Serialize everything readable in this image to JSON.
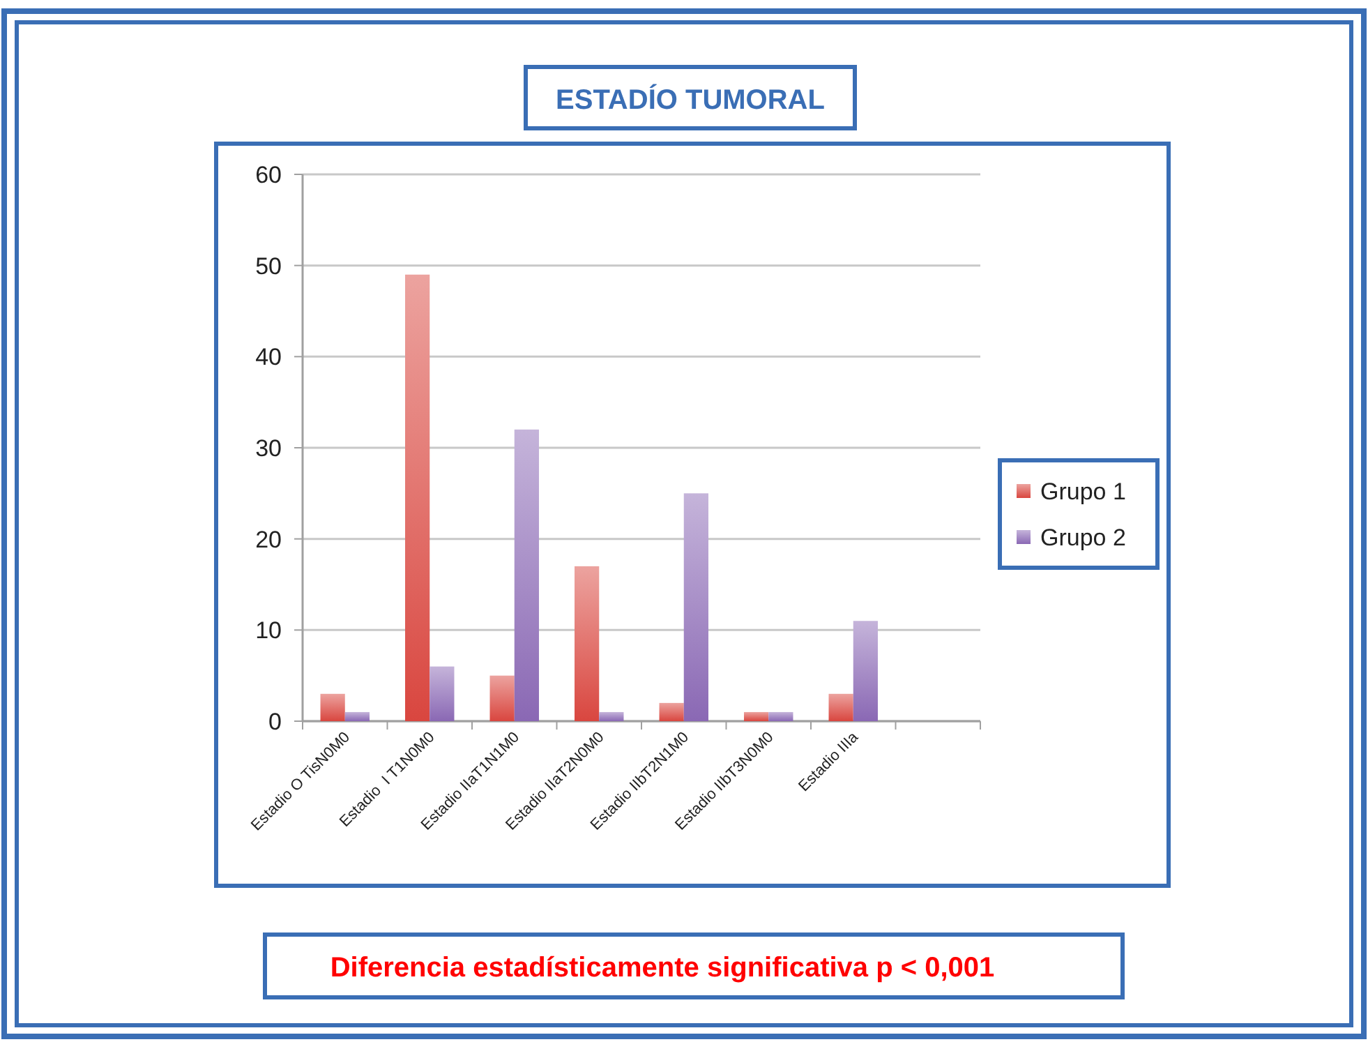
{
  "chart_data": {
    "type": "bar",
    "title": "ESTADÍO TUMORAL",
    "categories": [
      "Estadio O TisN0M0",
      "Estadio  I T1N0M0",
      "Estadio IIaT1N1M0",
      "Estadio IIaT2N0M0",
      "Estadio IIbT2N1M0",
      "Estadio IIbT3N0M0",
      "Estadio IIIa",
      null
    ],
    "series": [
      {
        "name": "Grupo 1",
        "color": "#d9463f",
        "values": [
          3,
          49,
          5,
          17,
          2,
          1,
          3,
          null
        ]
      },
      {
        "name": "Grupo 2",
        "color": "#8a68b4",
        "values": [
          1,
          6,
          32,
          1,
          25,
          1,
          11,
          null
        ]
      }
    ],
    "ylim": [
      0,
      60
    ],
    "yticks": [
      0,
      10,
      20,
      30,
      40,
      50,
      60
    ],
    "grid": "y",
    "legend": "right",
    "annotations": [
      "Diferencia estadísticamente significativa p < 0,001"
    ]
  }
}
